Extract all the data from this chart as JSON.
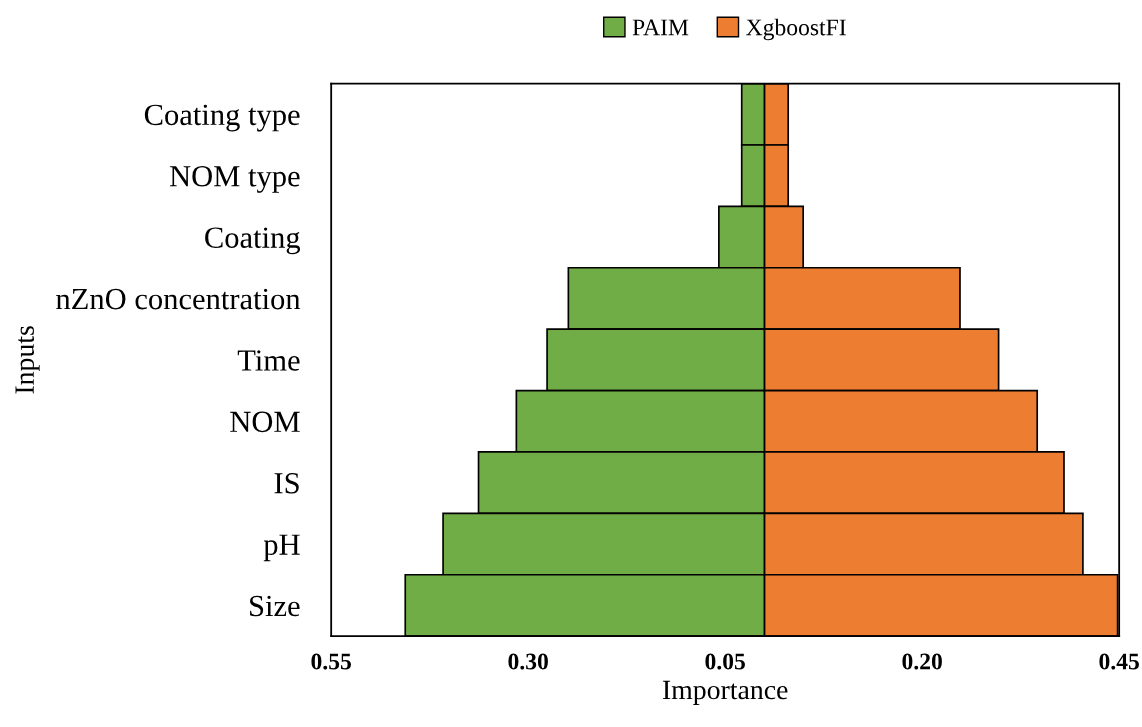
{
  "chart_data": {
    "type": "bar",
    "orientation": "horizontal",
    "stacked": true,
    "categories": [
      "Coating type",
      "NOM type",
      "Coating",
      "nZnO concentration",
      "Time",
      "NOM",
      "IS",
      "pH",
      "Size"
    ],
    "series": [
      {
        "name": "PAIM",
        "color": "#70ad47",
        "values": [
          -0.029,
          -0.029,
          -0.058,
          -0.249,
          -0.276,
          -0.315,
          -0.363,
          -0.408,
          -0.456
        ]
      },
      {
        "name": "XgboostFI",
        "color": "#ed7d31",
        "values": [
          0.03,
          0.03,
          0.049,
          0.248,
          0.297,
          0.346,
          0.38,
          0.404,
          0.448
        ]
      }
    ],
    "xlim": [
      -0.55,
      0.45
    ],
    "xticks": [
      {
        "value": -0.55,
        "label": "0.55"
      },
      {
        "value": -0.3,
        "label": "0.30"
      },
      {
        "value": -0.05,
        "label": "0.05"
      },
      {
        "value": 0.2,
        "label": "0.20"
      },
      0.45
    ],
    "xlabel": "Importance",
    "ylabel": "Inputs",
    "legend": "top",
    "grid": false
  }
}
